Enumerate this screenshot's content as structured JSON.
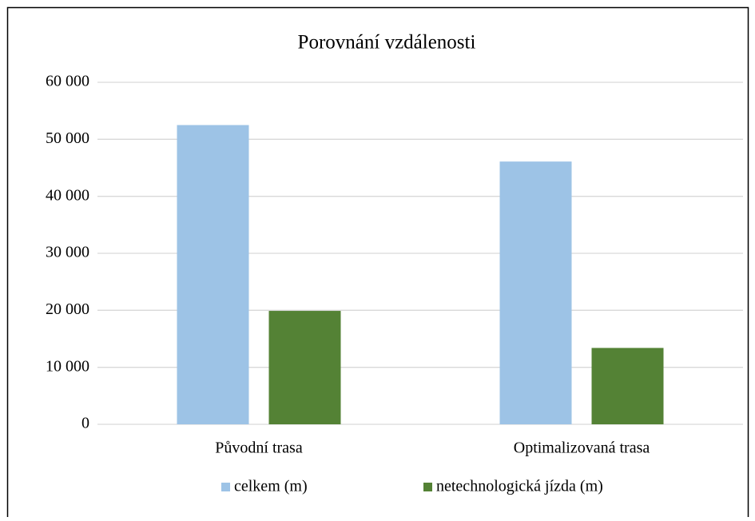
{
  "chart_data": {
    "type": "bar",
    "title": "Porovnání vzdálenosti",
    "categories": [
      "Původní trasa",
      "Optimalizovaná trasa"
    ],
    "series": [
      {
        "name": "celkem (m)",
        "color": "#9dc3e6",
        "values": [
          52500,
          46100
        ]
      },
      {
        "name": "netechnologická jízda (m)",
        "color": "#548235",
        "values": [
          19900,
          13400
        ]
      }
    ],
    "ylim": [
      0,
      60000
    ],
    "yticks": [
      0,
      {
        "value": 10000,
        "label": "10 000"
      },
      {
        "value": 20000,
        "label": "20 000"
      },
      {
        "value": 30000,
        "label": "30 000"
      },
      {
        "value": 40000,
        "label": "40 000"
      },
      {
        "value": 50000,
        "label": "50 000"
      },
      {
        "value": 60000,
        "label": "60 000"
      }
    ],
    "grid": true,
    "legend": "bottom"
  }
}
